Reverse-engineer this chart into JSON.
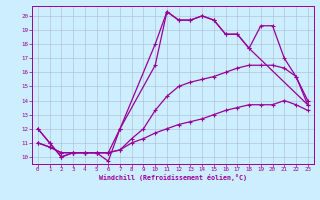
{
  "xlabel": "Windchill (Refroidissement éolien,°C)",
  "bg_color": "#cceeff",
  "line_color": "#990099",
  "grid_color": "#aabbcc",
  "xlim": [
    -0.5,
    23.5
  ],
  "ylim": [
    9.5,
    20.7
  ],
  "xticks": [
    0,
    1,
    2,
    3,
    4,
    5,
    6,
    7,
    8,
    9,
    10,
    11,
    12,
    13,
    14,
    15,
    16,
    17,
    18,
    19,
    20,
    21,
    22,
    23
  ],
  "yticks": [
    10,
    11,
    12,
    13,
    14,
    15,
    16,
    17,
    18,
    19,
    20
  ],
  "line1_x": [
    0,
    1,
    2,
    3,
    4,
    5,
    6,
    7,
    10,
    11,
    12,
    13,
    14,
    15,
    16,
    17,
    18,
    19,
    20,
    21,
    22,
    23
  ],
  "line1_y": [
    12,
    11,
    10,
    10.3,
    10.3,
    10.3,
    10.3,
    12,
    18,
    20.3,
    19.7,
    19.7,
    20.0,
    19.7,
    18.7,
    18.7,
    17.7,
    19.3,
    19.3,
    17.0,
    15.7,
    13.7
  ],
  "line2_x": [
    0,
    1,
    2,
    3,
    4,
    5,
    6,
    7,
    10,
    11,
    12,
    13,
    14,
    15,
    16,
    17,
    18,
    23
  ],
  "line2_y": [
    12,
    11,
    10,
    10.3,
    10.3,
    10.3,
    9.7,
    12,
    16.5,
    20.3,
    19.7,
    19.7,
    20.0,
    19.7,
    18.7,
    18.7,
    17.7,
    13.7
  ],
  "line3_x": [
    0,
    1,
    2,
    3,
    4,
    5,
    6,
    7,
    8,
    9,
    10,
    11,
    12,
    13,
    14,
    15,
    16,
    17,
    18,
    19,
    20,
    21,
    22,
    23
  ],
  "line3_y": [
    11.0,
    10.7,
    10.3,
    10.3,
    10.3,
    10.3,
    10.3,
    10.5,
    11.0,
    11.3,
    11.7,
    12.0,
    12.3,
    12.5,
    12.7,
    13.0,
    13.3,
    13.5,
    13.7,
    13.7,
    13.7,
    14.0,
    13.7,
    13.3
  ],
  "line4_x": [
    0,
    1,
    2,
    3,
    4,
    5,
    6,
    7,
    8,
    9,
    10,
    11,
    12,
    13,
    14,
    15,
    16,
    17,
    18,
    19,
    20,
    21,
    22,
    23
  ],
  "line4_y": [
    11.0,
    10.7,
    10.3,
    10.3,
    10.3,
    10.3,
    10.3,
    10.5,
    11.3,
    12.0,
    13.3,
    14.3,
    15.0,
    15.3,
    15.5,
    15.7,
    16.0,
    16.3,
    16.5,
    16.5,
    16.5,
    16.3,
    15.7,
    14.0
  ]
}
